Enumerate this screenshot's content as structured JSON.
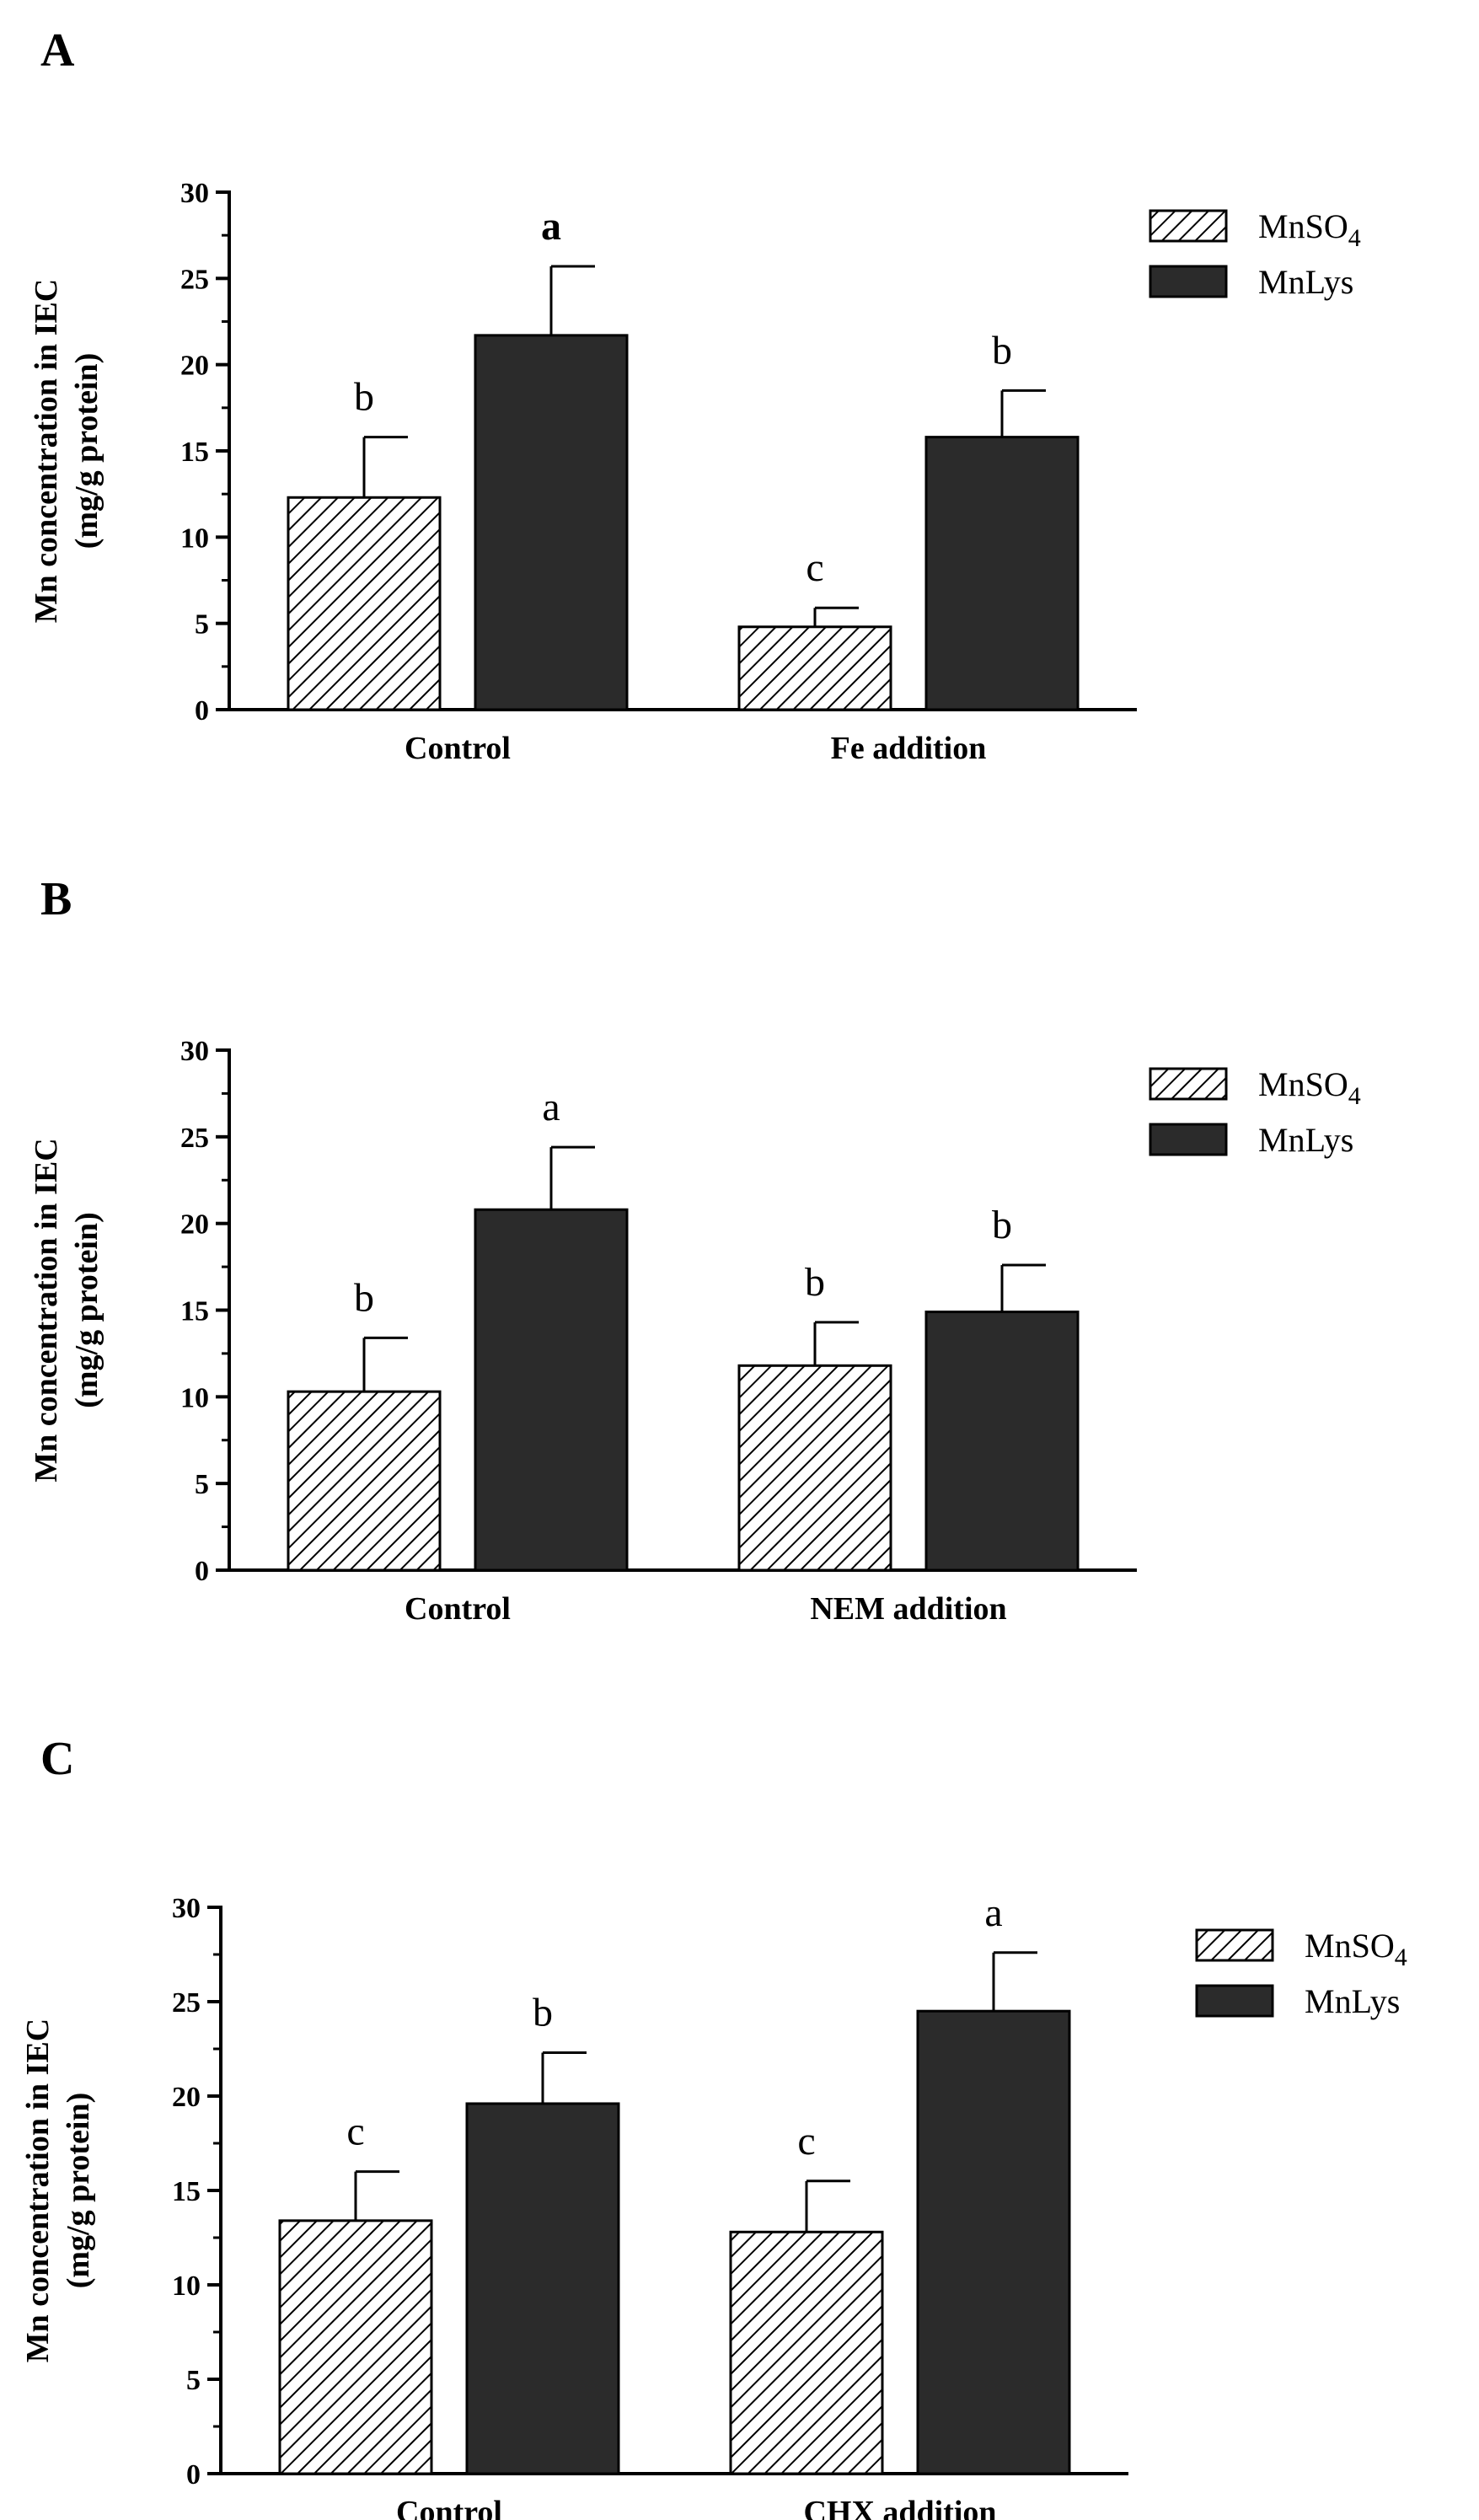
{
  "colors": {
    "dark_bar": "#2b2b2b",
    "axis": "#000000",
    "hatch_line": "#000000",
    "hatch_bg": "#ffffff"
  },
  "chart_data": [
    {
      "type": "bar",
      "panel": "A",
      "ylabel_line1": "Mn concentration in IEC",
      "ylabel_line2": "(mg/g protein)",
      "ylim": [
        0,
        30
      ],
      "yticks": [
        0,
        5,
        10,
        15,
        20,
        25,
        30
      ],
      "categories": [
        "Control",
        "Fe addition"
      ],
      "legend": {
        "position": "top-right",
        "entries": [
          "MnSO",
          "MnLys"
        ],
        "subscript": "4"
      },
      "series": [
        {
          "name": "MnSO4",
          "fill": "hatch",
          "values": [
            12.3,
            4.8
          ],
          "errors": [
            3.5,
            1.1
          ],
          "labels": [
            "b",
            "c"
          ],
          "bold": [
            false,
            false
          ]
        },
        {
          "name": "MnLys",
          "fill": "dark",
          "values": [
            21.7,
            15.8
          ],
          "errors": [
            4.0,
            2.7
          ],
          "labels": [
            "a",
            "b"
          ],
          "bold": [
            true,
            false
          ]
        }
      ]
    },
    {
      "type": "bar",
      "panel": "B",
      "ylabel_line1": "Mn concentration in IEC",
      "ylabel_line2": "(mg/g protein)",
      "ylim": [
        0,
        30
      ],
      "yticks": [
        0,
        5,
        10,
        15,
        20,
        25,
        30
      ],
      "categories": [
        "Control",
        "NEM addition"
      ],
      "legend": {
        "position": "top-right",
        "entries": [
          "MnSO",
          "MnLys"
        ],
        "subscript": "4"
      },
      "series": [
        {
          "name": "MnSO4",
          "fill": "hatch",
          "values": [
            10.3,
            11.8
          ],
          "errors": [
            3.1,
            2.5
          ],
          "labels": [
            "b",
            "b"
          ],
          "bold": [
            false,
            false
          ]
        },
        {
          "name": "MnLys",
          "fill": "dark",
          "values": [
            20.8,
            14.9
          ],
          "errors": [
            3.6,
            2.7
          ],
          "labels": [
            "a",
            "b"
          ],
          "bold": [
            false,
            false
          ]
        }
      ]
    },
    {
      "type": "bar",
      "panel": "C",
      "ylabel_line1": "Mn concentration in IEC",
      "ylabel_line2": "(mg/g protein)",
      "ylim": [
        0,
        30
      ],
      "yticks": [
        0,
        5,
        10,
        15,
        20,
        25,
        30
      ],
      "categories": [
        "Control",
        "CHX addition"
      ],
      "legend": {
        "position": "top-right",
        "entries": [
          "MnSO",
          "MnLys"
        ],
        "subscript": "4"
      },
      "series": [
        {
          "name": "MnSO4",
          "fill": "hatch",
          "values": [
            13.4,
            12.8
          ],
          "errors": [
            2.6,
            2.7
          ],
          "labels": [
            "c",
            "c"
          ],
          "bold": [
            false,
            false
          ]
        },
        {
          "name": "MnLys",
          "fill": "dark",
          "values": [
            19.6,
            24.5
          ],
          "errors": [
            2.7,
            3.1
          ],
          "labels": [
            "b",
            "a"
          ],
          "bold": [
            false,
            false
          ]
        }
      ]
    }
  ]
}
